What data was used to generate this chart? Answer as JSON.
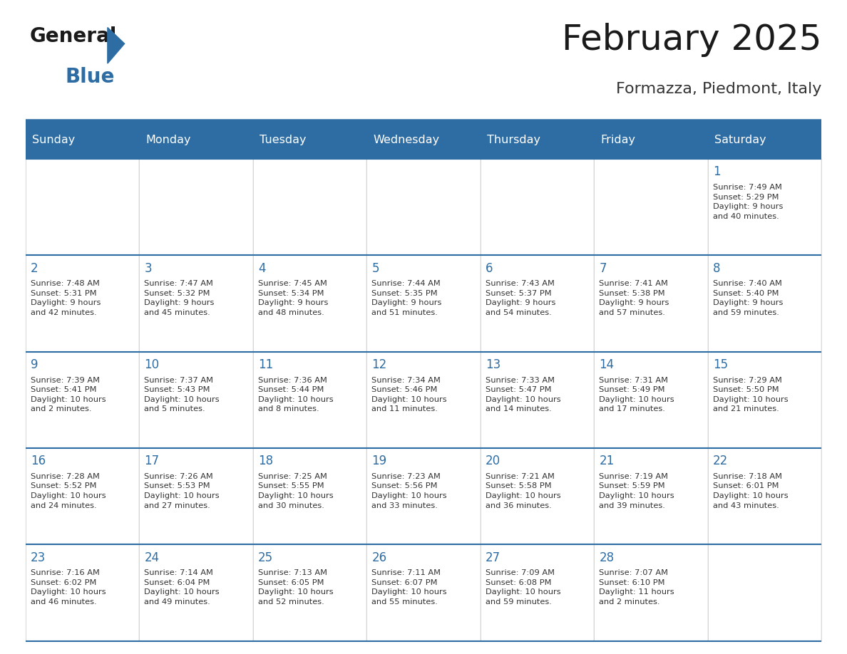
{
  "title": "February 2025",
  "subtitle": "Formazza, Piedmont, Italy",
  "header_bg_color": "#2E6DA4",
  "header_text_color": "#FFFFFF",
  "cell_bg_color": "#FFFFFF",
  "cell_alt_bg_color": "#F8F8F8",
  "cell_text_color": "#333333",
  "day_number_color": "#2E6DA4",
  "grid_line_color": "#2E6DA4",
  "border_line_color": "#AAAAAA",
  "days_of_week": [
    "Sunday",
    "Monday",
    "Tuesday",
    "Wednesday",
    "Thursday",
    "Friday",
    "Saturday"
  ],
  "weeks": [
    [
      {
        "day": null,
        "info": null
      },
      {
        "day": null,
        "info": null
      },
      {
        "day": null,
        "info": null
      },
      {
        "day": null,
        "info": null
      },
      {
        "day": null,
        "info": null
      },
      {
        "day": null,
        "info": null
      },
      {
        "day": 1,
        "info": "Sunrise: 7:49 AM\nSunset: 5:29 PM\nDaylight: 9 hours\nand 40 minutes."
      }
    ],
    [
      {
        "day": 2,
        "info": "Sunrise: 7:48 AM\nSunset: 5:31 PM\nDaylight: 9 hours\nand 42 minutes."
      },
      {
        "day": 3,
        "info": "Sunrise: 7:47 AM\nSunset: 5:32 PM\nDaylight: 9 hours\nand 45 minutes."
      },
      {
        "day": 4,
        "info": "Sunrise: 7:45 AM\nSunset: 5:34 PM\nDaylight: 9 hours\nand 48 minutes."
      },
      {
        "day": 5,
        "info": "Sunrise: 7:44 AM\nSunset: 5:35 PM\nDaylight: 9 hours\nand 51 minutes."
      },
      {
        "day": 6,
        "info": "Sunrise: 7:43 AM\nSunset: 5:37 PM\nDaylight: 9 hours\nand 54 minutes."
      },
      {
        "day": 7,
        "info": "Sunrise: 7:41 AM\nSunset: 5:38 PM\nDaylight: 9 hours\nand 57 minutes."
      },
      {
        "day": 8,
        "info": "Sunrise: 7:40 AM\nSunset: 5:40 PM\nDaylight: 9 hours\nand 59 minutes."
      }
    ],
    [
      {
        "day": 9,
        "info": "Sunrise: 7:39 AM\nSunset: 5:41 PM\nDaylight: 10 hours\nand 2 minutes."
      },
      {
        "day": 10,
        "info": "Sunrise: 7:37 AM\nSunset: 5:43 PM\nDaylight: 10 hours\nand 5 minutes."
      },
      {
        "day": 11,
        "info": "Sunrise: 7:36 AM\nSunset: 5:44 PM\nDaylight: 10 hours\nand 8 minutes."
      },
      {
        "day": 12,
        "info": "Sunrise: 7:34 AM\nSunset: 5:46 PM\nDaylight: 10 hours\nand 11 minutes."
      },
      {
        "day": 13,
        "info": "Sunrise: 7:33 AM\nSunset: 5:47 PM\nDaylight: 10 hours\nand 14 minutes."
      },
      {
        "day": 14,
        "info": "Sunrise: 7:31 AM\nSunset: 5:49 PM\nDaylight: 10 hours\nand 17 minutes."
      },
      {
        "day": 15,
        "info": "Sunrise: 7:29 AM\nSunset: 5:50 PM\nDaylight: 10 hours\nand 21 minutes."
      }
    ],
    [
      {
        "day": 16,
        "info": "Sunrise: 7:28 AM\nSunset: 5:52 PM\nDaylight: 10 hours\nand 24 minutes."
      },
      {
        "day": 17,
        "info": "Sunrise: 7:26 AM\nSunset: 5:53 PM\nDaylight: 10 hours\nand 27 minutes."
      },
      {
        "day": 18,
        "info": "Sunrise: 7:25 AM\nSunset: 5:55 PM\nDaylight: 10 hours\nand 30 minutes."
      },
      {
        "day": 19,
        "info": "Sunrise: 7:23 AM\nSunset: 5:56 PM\nDaylight: 10 hours\nand 33 minutes."
      },
      {
        "day": 20,
        "info": "Sunrise: 7:21 AM\nSunset: 5:58 PM\nDaylight: 10 hours\nand 36 minutes."
      },
      {
        "day": 21,
        "info": "Sunrise: 7:19 AM\nSunset: 5:59 PM\nDaylight: 10 hours\nand 39 minutes."
      },
      {
        "day": 22,
        "info": "Sunrise: 7:18 AM\nSunset: 6:01 PM\nDaylight: 10 hours\nand 43 minutes."
      }
    ],
    [
      {
        "day": 23,
        "info": "Sunrise: 7:16 AM\nSunset: 6:02 PM\nDaylight: 10 hours\nand 46 minutes."
      },
      {
        "day": 24,
        "info": "Sunrise: 7:14 AM\nSunset: 6:04 PM\nDaylight: 10 hours\nand 49 minutes."
      },
      {
        "day": 25,
        "info": "Sunrise: 7:13 AM\nSunset: 6:05 PM\nDaylight: 10 hours\nand 52 minutes."
      },
      {
        "day": 26,
        "info": "Sunrise: 7:11 AM\nSunset: 6:07 PM\nDaylight: 10 hours\nand 55 minutes."
      },
      {
        "day": 27,
        "info": "Sunrise: 7:09 AM\nSunset: 6:08 PM\nDaylight: 10 hours\nand 59 minutes."
      },
      {
        "day": 28,
        "info": "Sunrise: 7:07 AM\nSunset: 6:10 PM\nDaylight: 11 hours\nand 2 minutes."
      },
      {
        "day": null,
        "info": null
      }
    ]
  ],
  "figsize": [
    11.88,
    9.18
  ],
  "dpi": 100
}
